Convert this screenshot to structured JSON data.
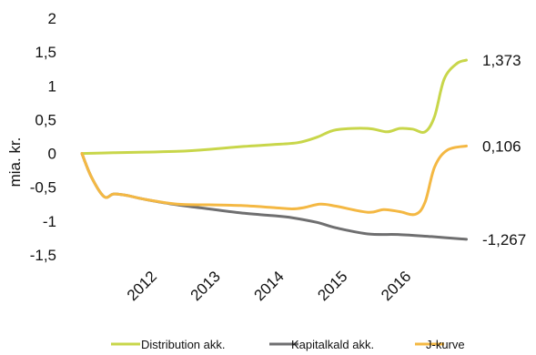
{
  "chart_data": {
    "type": "line",
    "title": "",
    "xlabel": "",
    "ylabel": "mia. kr.",
    "ylim": [
      -1.5,
      2
    ],
    "y_ticks": [
      "2",
      "1,5",
      "1",
      "0,5",
      "0",
      "-0,5",
      "-1",
      "-1,5"
    ],
    "y_tick_values": [
      2,
      1.5,
      1,
      0.5,
      0,
      -0.5,
      -1,
      -1.5
    ],
    "xlim": [
      2011.0,
      2017.1
    ],
    "x_ticks": [
      "2012",
      "2013",
      "2014",
      "2015",
      "2016"
    ],
    "x_tick_values": [
      2012.0,
      2013.0,
      2014.0,
      2015.0,
      2016.0
    ],
    "grid": false,
    "legend_position": "bottom",
    "series": [
      {
        "name": "Distribution akk.",
        "color": "#c8d64a",
        "end_label": "1,373",
        "points": [
          [
            2011.0,
            0.0
          ],
          [
            2011.5,
            0.01
          ],
          [
            2012.0,
            0.02
          ],
          [
            2012.5,
            0.03
          ],
          [
            2013.0,
            0.06
          ],
          [
            2013.5,
            0.1
          ],
          [
            2014.0,
            0.13
          ],
          [
            2014.4,
            0.16
          ],
          [
            2014.7,
            0.24
          ],
          [
            2015.0,
            0.35
          ],
          [
            2015.5,
            0.37
          ],
          [
            2015.8,
            0.32
          ],
          [
            2016.0,
            0.37
          ],
          [
            2016.2,
            0.36
          ],
          [
            2016.4,
            0.32
          ],
          [
            2016.55,
            0.55
          ],
          [
            2016.7,
            1.1
          ],
          [
            2016.9,
            1.33
          ],
          [
            2017.05,
            1.38
          ]
        ]
      },
      {
        "name": "Kapitalkald akk.",
        "color": "#6f6f70",
        "end_label": "-1,267",
        "points": [
          [
            2011.0,
            0.0
          ],
          [
            2011.15,
            -0.35
          ],
          [
            2011.35,
            -0.64
          ],
          [
            2011.5,
            -0.6
          ],
          [
            2011.7,
            -0.62
          ],
          [
            2012.0,
            -0.68
          ],
          [
            2012.5,
            -0.76
          ],
          [
            2013.0,
            -0.82
          ],
          [
            2013.5,
            -0.88
          ],
          [
            2014.0,
            -0.92
          ],
          [
            2014.3,
            -0.95
          ],
          [
            2014.7,
            -1.02
          ],
          [
            2015.0,
            -1.1
          ],
          [
            2015.5,
            -1.19
          ],
          [
            2016.0,
            -1.2
          ],
          [
            2016.5,
            -1.23
          ],
          [
            2017.05,
            -1.27
          ]
        ]
      },
      {
        "name": "J-kurve",
        "color": "#f4b843",
        "end_label": "0,106",
        "points": [
          [
            2011.0,
            0.0
          ],
          [
            2011.15,
            -0.35
          ],
          [
            2011.35,
            -0.64
          ],
          [
            2011.5,
            -0.6
          ],
          [
            2011.7,
            -0.62
          ],
          [
            2012.0,
            -0.68
          ],
          [
            2012.5,
            -0.75
          ],
          [
            2013.0,
            -0.76
          ],
          [
            2013.5,
            -0.77
          ],
          [
            2014.0,
            -0.8
          ],
          [
            2014.3,
            -0.82
          ],
          [
            2014.5,
            -0.8
          ],
          [
            2014.75,
            -0.75
          ],
          [
            2015.0,
            -0.78
          ],
          [
            2015.5,
            -0.87
          ],
          [
            2015.75,
            -0.83
          ],
          [
            2016.0,
            -0.86
          ],
          [
            2016.25,
            -0.9
          ],
          [
            2016.4,
            -0.72
          ],
          [
            2016.55,
            -0.2
          ],
          [
            2016.75,
            0.05
          ],
          [
            2017.05,
            0.11
          ]
        ]
      }
    ]
  }
}
